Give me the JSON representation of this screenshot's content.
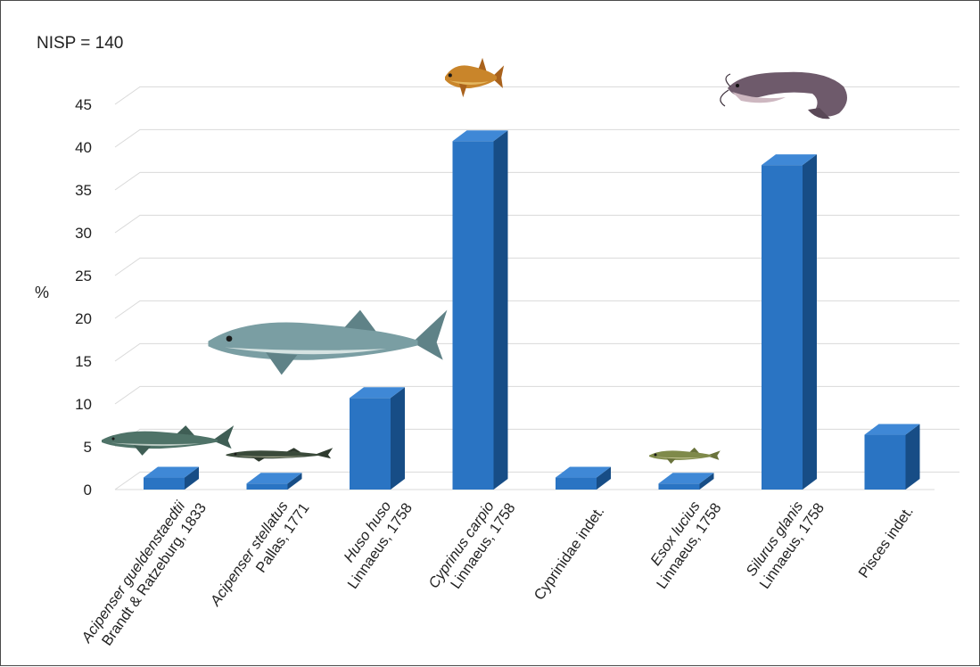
{
  "chart_data": {
    "type": "bar",
    "annotation": "NISP = 140",
    "ylabel": "%",
    "xlabel": "",
    "ylim": [
      0,
      45
    ],
    "yticks": [
      0,
      5,
      10,
      15,
      20,
      25,
      30,
      35,
      40,
      45
    ],
    "grid": true,
    "style": "3d-column",
    "colors": {
      "bar_front": "#2a74c3",
      "bar_top": "#3f88d6",
      "bar_side": "#174d86",
      "grid": "#d9d9d9"
    },
    "categories": [
      {
        "line1": "Acipenser gueldenstaedtii",
        "line2": "Brandt & Ratzeburg, 1833",
        "italic_line": 1
      },
      {
        "line1": "Acipenser stellatus",
        "line2": "Pallas, 1771",
        "italic_line": 1
      },
      {
        "line1": "Huso huso",
        "line2": "Linnaeus, 1758",
        "italic_line": 1
      },
      {
        "line1": "Cyprinus carpio",
        "line2": "Linnaeus, 1758",
        "italic_line": 1
      },
      {
        "line1": "Cyprinidae indet.",
        "line2": "",
        "italic_line": 0
      },
      {
        "line1": "Esox lucius",
        "line2": "Linnaeus, 1758",
        "italic_line": 1
      },
      {
        "line1": "Silurus glanis",
        "line2": "Linnaeus, 1758",
        "italic_line": 1
      },
      {
        "line1": "Pisces indet.",
        "line2": "",
        "italic_line": 0
      }
    ],
    "values": [
      1.4,
      0.7,
      10.7,
      40.7,
      1.4,
      0.7,
      37.9,
      6.4
    ],
    "illustrations": [
      "sturgeon-icon",
      "stellate-sturgeon-icon",
      "beluga-icon",
      "carp-icon",
      "",
      "pike-icon",
      "catfish-icon",
      ""
    ]
  }
}
